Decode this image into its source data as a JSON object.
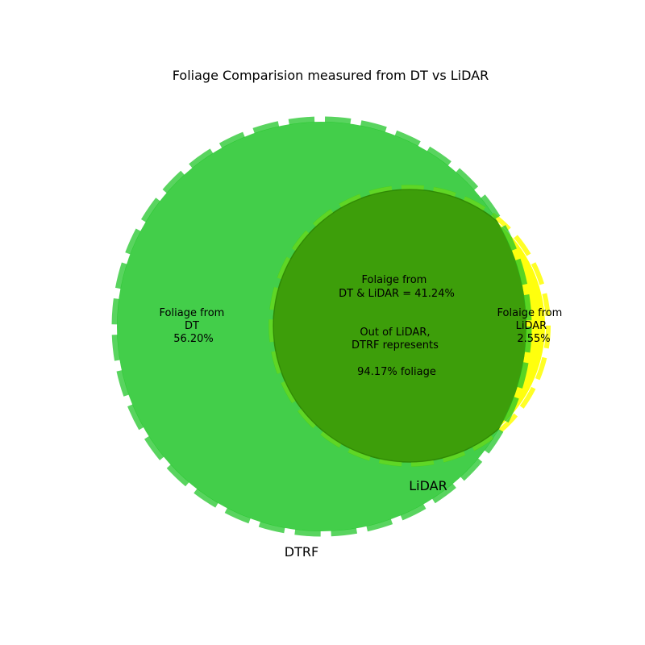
{
  "chart_data": {
    "type": "venn",
    "title": "Foliage Comparision measured from DT vs LiDAR",
    "sets": [
      {
        "name": "DTRF",
        "color": "#22c62a"
      },
      {
        "name": "LiDAR",
        "color": "#ffff00"
      }
    ],
    "regions": {
      "dt_only": {
        "lines": [
          "Foliage from",
          "DT",
          "56.20%"
        ],
        "value": 56.2
      },
      "intersection": {
        "lines": [
          "Folaige from",
          "DT & LiDAR = 41.24%"
        ],
        "value": 41.24
      },
      "lidar_only": {
        "lines": [
          "Folaige from",
          "LiDAR",
          "2.55%"
        ],
        "value": 2.55
      }
    },
    "annotation": {
      "lines": [
        "Out of LiDAR,",
        "DTRF represents",
        "",
        "94.17%  foliage"
      ],
      "value": 94.17
    },
    "overlap_color": "#3d9b08"
  }
}
